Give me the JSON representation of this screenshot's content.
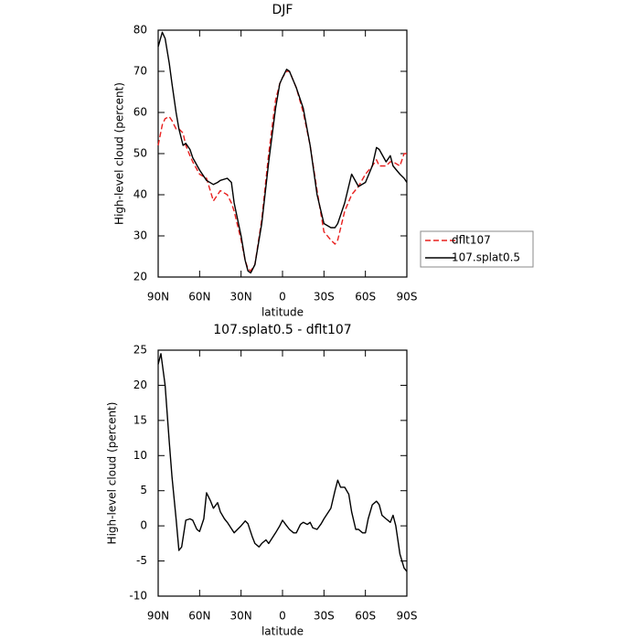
{
  "chart_data": [
    {
      "type": "line",
      "title": "DJF",
      "xlabel": "latitude",
      "ylabel": "High-level cloud (percent)",
      "x": [
        90,
        87,
        85,
        82,
        80,
        77,
        75,
        72,
        70,
        67,
        65,
        60,
        55,
        50,
        47,
        45,
        40,
        37,
        35,
        30,
        27,
        25,
        23,
        20,
        15,
        10,
        5,
        2,
        0,
        -3,
        -5,
        -10,
        -15,
        -20,
        -25,
        -30,
        -35,
        -38,
        -40,
        -45,
        -50,
        -55,
        -60,
        -65,
        -68,
        -70,
        -75,
        -78,
        -80,
        -85,
        -88,
        -90
      ],
      "series": [
        {
          "name": "dflt107",
          "color": "#e8201f",
          "dash": true,
          "values": [
            52,
            57,
            58.5,
            59,
            58,
            56,
            56,
            55,
            52,
            49.5,
            48,
            45,
            44,
            38.5,
            40,
            41,
            40,
            38,
            36,
            29,
            24,
            22,
            21.5,
            23,
            34,
            50,
            63,
            67,
            68.5,
            70,
            70,
            66,
            60,
            52,
            41,
            31,
            29,
            28,
            29,
            36,
            40,
            42,
            45,
            47,
            48.5,
            47,
            47,
            48,
            48,
            47,
            50,
            50
          ]
        },
        {
          "name": "107.splat0.5",
          "color": "#000000",
          "dash": false,
          "values": [
            76,
            79.5,
            78,
            72,
            67,
            60,
            56,
            52,
            52.5,
            51,
            49,
            46,
            43.5,
            42.5,
            43,
            43.5,
            44,
            43,
            38,
            30,
            24,
            21.5,
            21,
            23,
            33,
            48,
            61,
            67,
            68.5,
            70.5,
            70,
            66,
            61,
            52,
            40,
            33,
            32,
            32,
            33,
            38,
            45,
            42,
            43,
            47,
            51.5,
            51,
            48,
            49.5,
            47,
            45,
            44,
            43
          ]
        }
      ],
      "xlim": [
        90,
        -90
      ],
      "xticks": [
        {
          "value": 90,
          "label": "90N"
        },
        {
          "value": 60,
          "label": "60N"
        },
        {
          "value": 30,
          "label": "30N"
        },
        0,
        {
          "value": -30,
          "label": "30S"
        },
        {
          "value": -60,
          "label": "60S"
        },
        {
          "value": -90,
          "label": "90S"
        }
      ],
      "ylim": [
        20,
        80
      ],
      "yticks": [
        20,
        30,
        40,
        50,
        60,
        70,
        80
      ],
      "legend": "right"
    },
    {
      "type": "line",
      "title": "107.splat0.5 - dflt107",
      "xlabel": "latitude",
      "ylabel": "High-level cloud (percent)",
      "x": [
        90,
        88,
        85,
        82,
        80,
        77,
        75,
        73,
        70,
        67,
        65,
        62,
        60,
        57,
        55,
        52,
        50,
        47,
        45,
        42,
        40,
        35,
        30,
        27,
        25,
        22,
        20,
        17,
        15,
        12,
        10,
        5,
        2,
        0,
        -3,
        -5,
        -8,
        -10,
        -13,
        -15,
        -18,
        -20,
        -22,
        -25,
        -28,
        -30,
        -35,
        -38,
        -40,
        -42,
        -45,
        -48,
        -50,
        -53,
        -55,
        -58,
        -60,
        -62,
        -65,
        -68,
        -70,
        -72,
        -75,
        -78,
        -80,
        -82,
        -85,
        -88,
        -90
      ],
      "series": [
        {
          "name": "107.splat0.5",
          "color": "#000000",
          "dash": false,
          "values": [
            23,
            24.5,
            20,
            12,
            7,
            1,
            -3.5,
            -3,
            0.8,
            1,
            0.8,
            -0.5,
            -0.8,
            1,
            4.7,
            3.5,
            2.5,
            3.3,
            2,
            1,
            0.5,
            -1,
            0,
            0.7,
            0.3,
            -1.5,
            -2.5,
            -3,
            -2.5,
            -2,
            -2.5,
            -1,
            0,
            0.8,
            0,
            -0.5,
            -1,
            -1,
            0.2,
            0.5,
            0.2,
            0.5,
            -0.3,
            -0.5,
            0.3,
            1,
            2.5,
            5,
            6.5,
            5.5,
            5.5,
            4.5,
            2,
            -0.5,
            -0.5,
            -1,
            -1,
            1,
            3,
            3.5,
            3,
            1.5,
            1,
            0.5,
            1.5,
            0,
            -4,
            -6,
            -6.5
          ]
        }
      ],
      "xlim": [
        90,
        -90
      ],
      "xticks": [
        {
          "value": 90,
          "label": "90N"
        },
        {
          "value": 60,
          "label": "60N"
        },
        {
          "value": 30,
          "label": "30N"
        },
        0,
        {
          "value": -30,
          "label": "30S"
        },
        {
          "value": -60,
          "label": "60S"
        },
        {
          "value": -90,
          "label": "90S"
        }
      ],
      "ylim": [
        -10,
        25
      ],
      "yticks": [
        -10,
        -5,
        0,
        5,
        10,
        15,
        20,
        25
      ]
    }
  ]
}
